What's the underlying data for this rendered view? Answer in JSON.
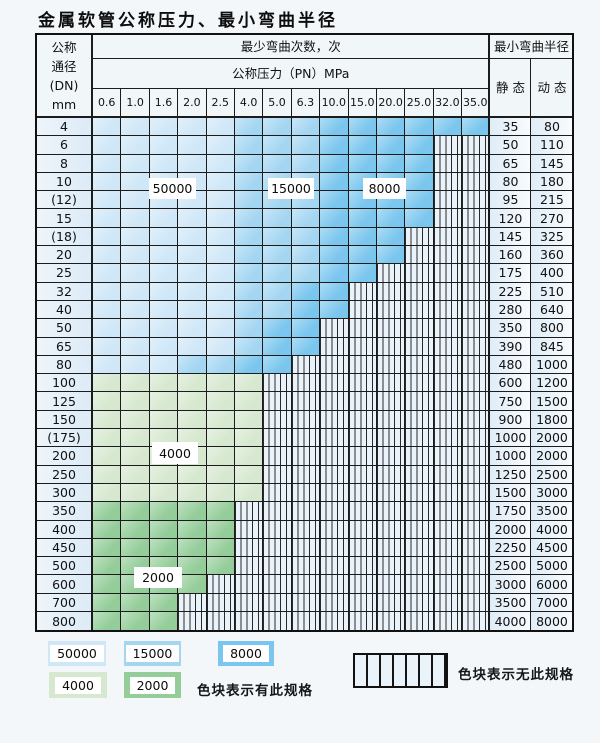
{
  "page": {
    "title": "金属软管公称压力、最小弯曲半径"
  },
  "table": {
    "header": {
      "dn_lines": [
        "公称",
        "通径",
        "(DN)",
        "mm"
      ],
      "bend_cycles_label": "最少弯曲次数，次",
      "bend_radius_label": "最小弯曲半径",
      "pressure_label": "公称压力（PN）MPa",
      "static_label": "静 态",
      "dynamic_label": "动 态",
      "pressure_cols": [
        "0.6",
        "1.0",
        "1.6",
        "2.0",
        "2.5",
        "4.0",
        "5.0",
        "6.3",
        "10.0",
        "15.0",
        "20.0",
        "25.0",
        "32.0",
        "35.0"
      ]
    },
    "cell_codes": {
      "L": "blue-light zone = 50000 bend cycles",
      "M": "blue-mid zone = 15000 bend cycles",
      "D": "blue-dark zone = 8000 bend cycles",
      "G": "green-light zone = 4000 bend cycles",
      "H": "green-dark zone = 2000 bend cycles",
      "X": "hatched = specification not available"
    },
    "rows": [
      {
        "dn": "4",
        "cells": "LLLLLMMMDDDDDD",
        "static": "35",
        "dynamic": "80"
      },
      {
        "dn": "6",
        "cells": "LLLLLMMMDDDDXX",
        "static": "50",
        "dynamic": "110"
      },
      {
        "dn": "8",
        "cells": "LLLLLMMMDDDDXX",
        "static": "65",
        "dynamic": "145"
      },
      {
        "dn": "10",
        "cells": "LLLLLMMMDDDDXX",
        "static": "80",
        "dynamic": "180"
      },
      {
        "dn": "(12)",
        "cells": "LLLLLMMMDDDDXX",
        "static": "95",
        "dynamic": "215"
      },
      {
        "dn": "15",
        "cells": "LLLLLMMMDDDDXX",
        "static": "120",
        "dynamic": "270"
      },
      {
        "dn": "(18)",
        "cells": "LLLLLMMMDDDXXX",
        "static": "145",
        "dynamic": "325"
      },
      {
        "dn": "20",
        "cells": "LLLLLMMMDDDXXX",
        "static": "160",
        "dynamic": "360"
      },
      {
        "dn": "25",
        "cells": "LLLLLMMMDDXXXX",
        "static": "175",
        "dynamic": "400"
      },
      {
        "dn": "32",
        "cells": "LLLLLMMDDXXXXX",
        "static": "225",
        "dynamic": "510"
      },
      {
        "dn": "40",
        "cells": "LLLLLMMDDXXXXX",
        "static": "280",
        "dynamic": "640"
      },
      {
        "dn": "50",
        "cells": "LLLLLMDDXXXXXX",
        "static": "350",
        "dynamic": "800"
      },
      {
        "dn": "65",
        "cells": "LLLLLMDDXXXXXX",
        "static": "390",
        "dynamic": "845"
      },
      {
        "dn": "80",
        "cells": "LLLMMDDXXXXXXX",
        "static": "480",
        "dynamic": "1000"
      },
      {
        "dn": "100",
        "cells": "GGGGGGXXXXXXXX",
        "static": "600",
        "dynamic": "1200"
      },
      {
        "dn": "125",
        "cells": "GGGGGGXXXXXXXX",
        "static": "750",
        "dynamic": "1500"
      },
      {
        "dn": "150",
        "cells": "GGGGGGXXXXXXXX",
        "static": "900",
        "dynamic": "1800"
      },
      {
        "dn": "(175)",
        "cells": "GGGGGGXXXXXXXX",
        "static": "1000",
        "dynamic": "2000"
      },
      {
        "dn": "200",
        "cells": "GGGGGGXXXXXXXX",
        "static": "1000",
        "dynamic": "2000"
      },
      {
        "dn": "250",
        "cells": "GGGGGGXXXXXXXX",
        "static": "1250",
        "dynamic": "2500"
      },
      {
        "dn": "300",
        "cells": "GGGGGGXXXXXXXX",
        "static": "1500",
        "dynamic": "3000"
      },
      {
        "dn": "350",
        "cells": "HHHHHXXXXXXXXX",
        "static": "1750",
        "dynamic": "3500"
      },
      {
        "dn": "400",
        "cells": "HHHHHXXXXXXXXX",
        "static": "2000",
        "dynamic": "4000"
      },
      {
        "dn": "450",
        "cells": "HHHHHXXXXXXXXX",
        "static": "2250",
        "dynamic": "4500"
      },
      {
        "dn": "500",
        "cells": "HHHHHXXXXXXXXX",
        "static": "2500",
        "dynamic": "5000"
      },
      {
        "dn": "600",
        "cells": "HHHHXXXXXXXXXX",
        "static": "3000",
        "dynamic": "6000"
      },
      {
        "dn": "700",
        "cells": "HHHXXXXXXXXXXX",
        "static": "3500",
        "dynamic": "7000"
      },
      {
        "dn": "800",
        "cells": "HHHXXXXXXXXXXX",
        "static": "4000",
        "dynamic": "8000"
      }
    ]
  },
  "overlay_labels": [
    {
      "text": "50000"
    },
    {
      "text": "15000"
    },
    {
      "text": "8000"
    },
    {
      "text": "4000"
    },
    {
      "text": "2000"
    }
  ],
  "legend": {
    "items": [
      {
        "label": "50000",
        "code": "L"
      },
      {
        "label": "15000",
        "code": "M"
      },
      {
        "label": "8000",
        "code": "D"
      },
      {
        "label": "4000",
        "code": "G"
      },
      {
        "label": "2000",
        "code": "H"
      }
    ],
    "note_has": "色块表示有此规格",
    "note_none": "色块表示无此规格"
  },
  "colors": {
    "L": "#cfe7f7",
    "M": "#a4d6f2",
    "D": "#7ac6ee",
    "G": "#d6e8cf",
    "H": "#94cd99",
    "hatch_bg": "#ebf3fa",
    "hatch_line": "#2a2a2a",
    "grid_line": "#1c1c1c"
  }
}
